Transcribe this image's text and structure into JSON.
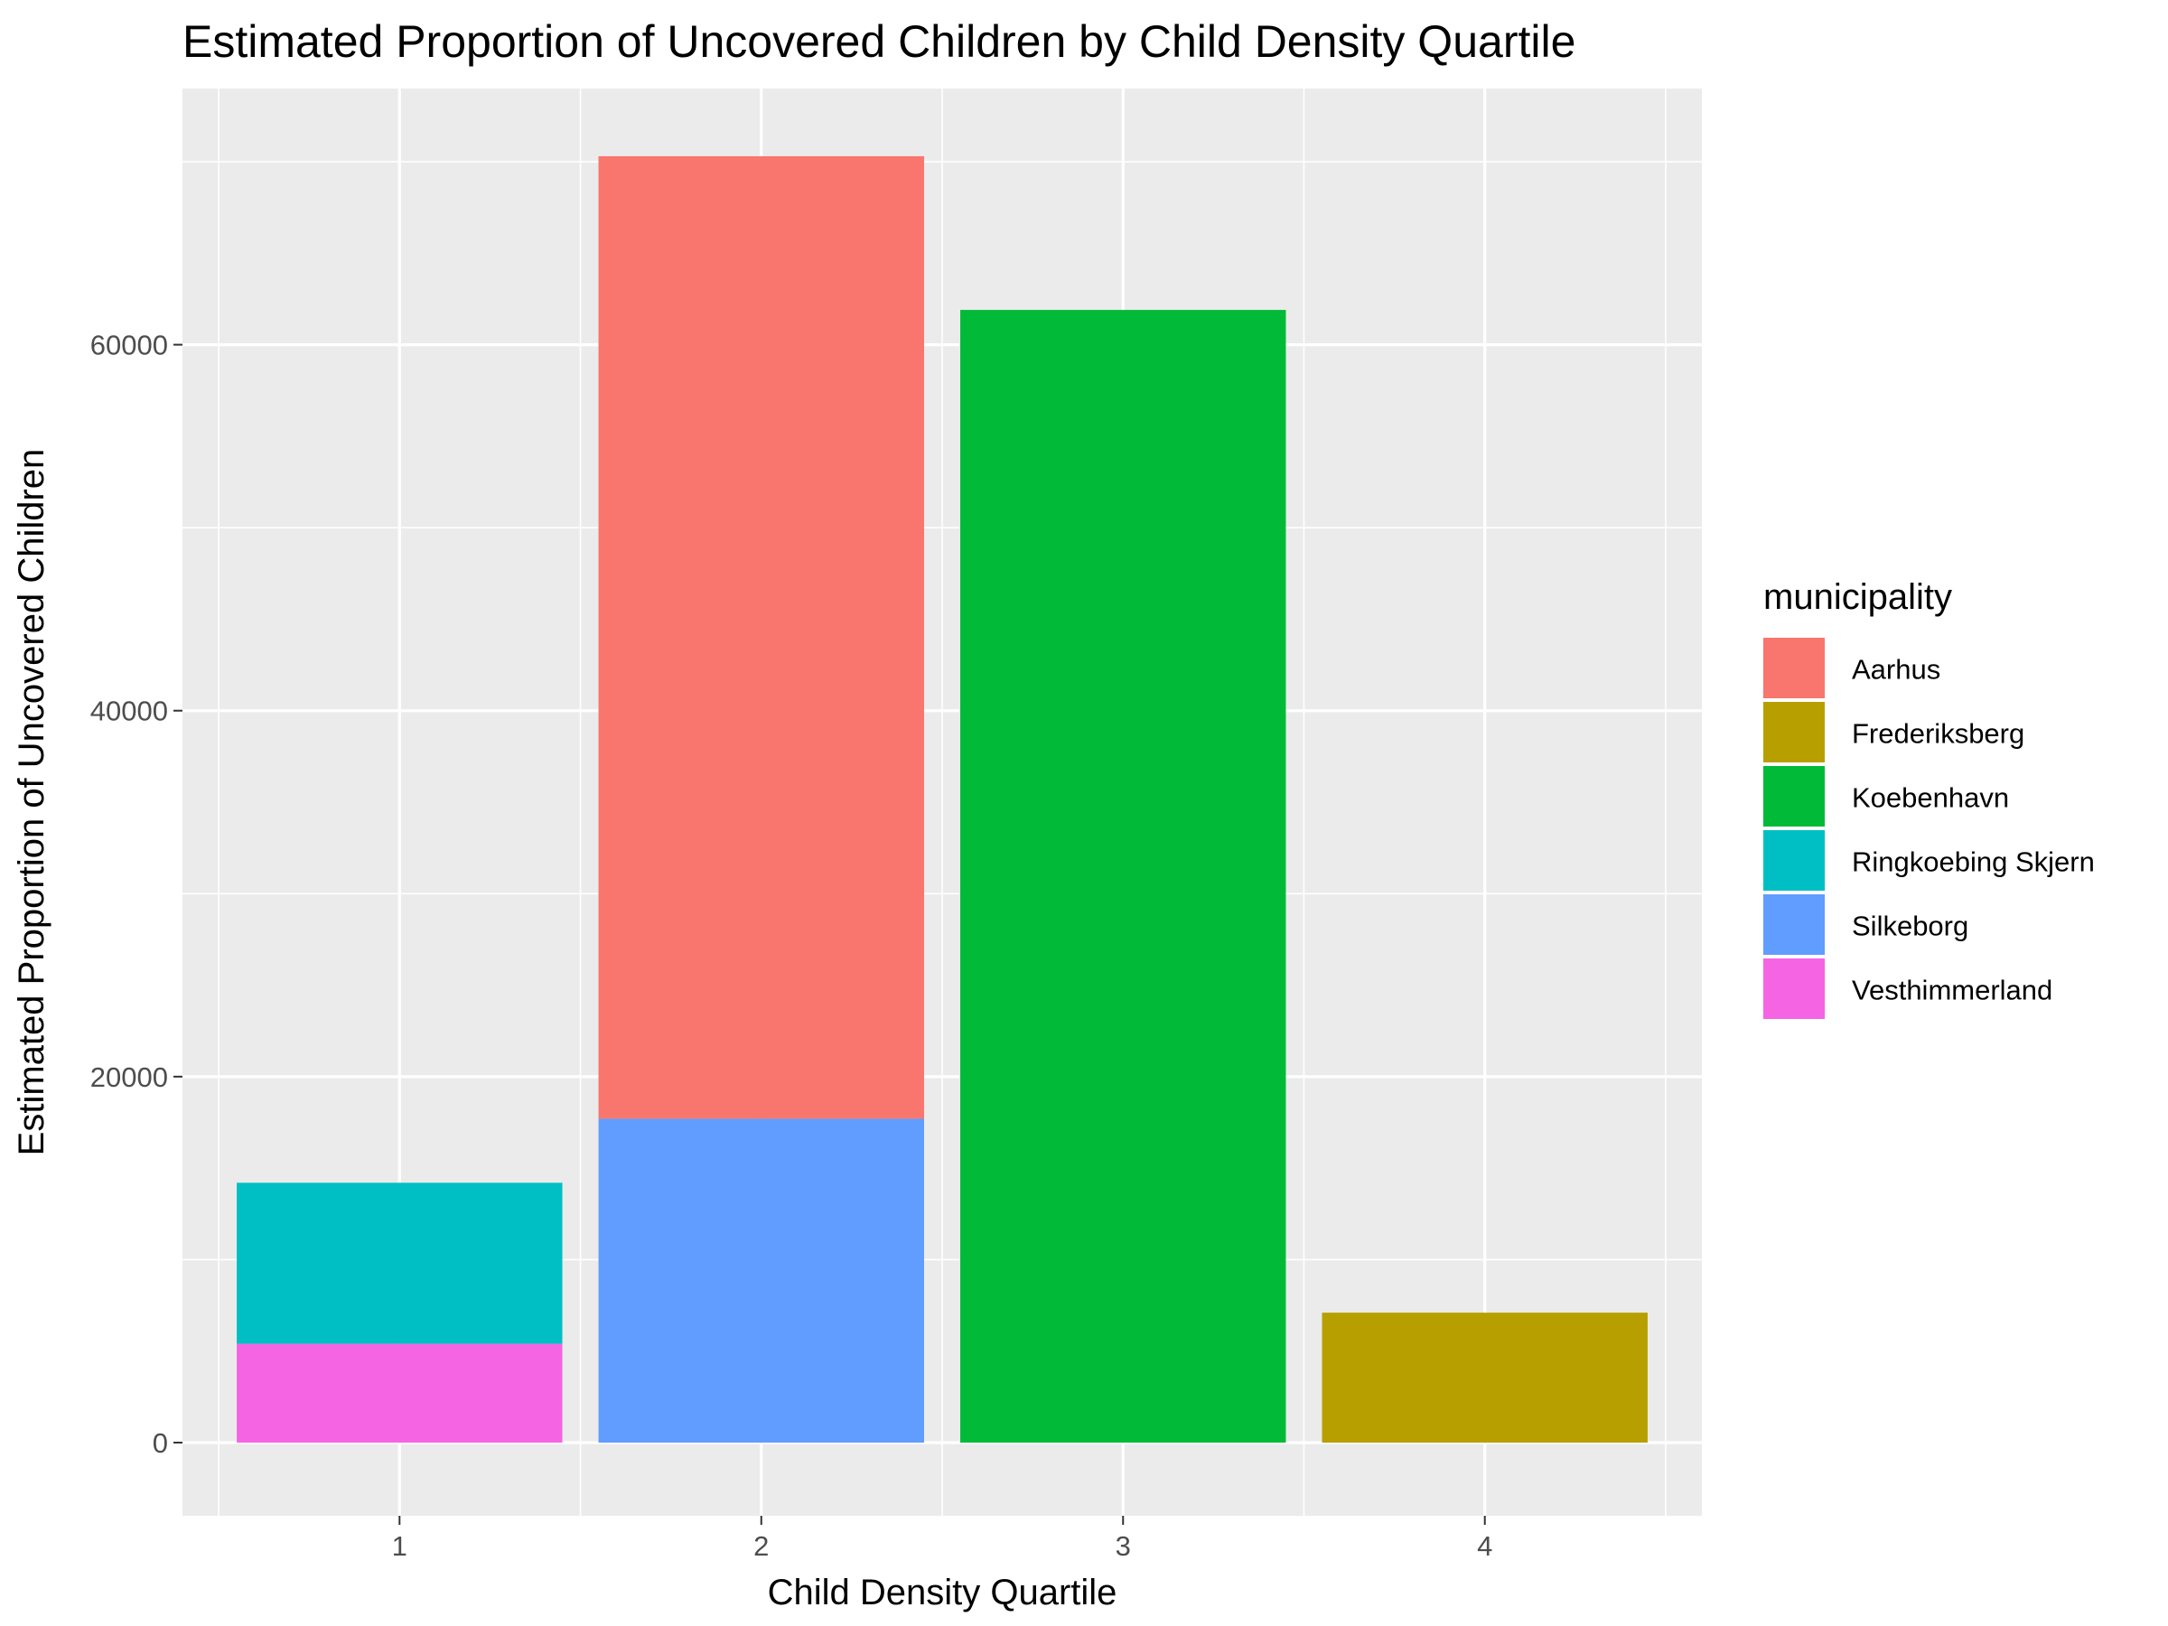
{
  "chart_data": {
    "type": "bar",
    "stacked": true,
    "title": "Estimated Proportion of Uncovered Children by Child Density Quartile",
    "xlabel": "Child Density Quartile",
    "ylabel": "Estimated Proportion of Uncovered Children",
    "categories": [
      "1",
      "2",
      "3",
      "4"
    ],
    "ylim": [
      -4000,
      74000
    ],
    "yticks": [
      0,
      20000,
      40000,
      60000
    ],
    "ytick_labels": [
      "0",
      "20000",
      "40000",
      "60000"
    ],
    "grid": true,
    "legend": {
      "title": "municipality",
      "position": "right",
      "entries": [
        "Aarhus",
        "Frederiksberg",
        "Koebenhavn",
        "Ringkoebing Skjern",
        "Silkeborg",
        "Vesthimmerland"
      ]
    },
    "colors": {
      "Aarhus": "#F8766D",
      "Frederiksberg": "#B79F00",
      "Koebenhavn": "#00BA38",
      "Ringkoebing Skjern": "#00BFC4",
      "Silkeborg": "#619CFF",
      "Vesthimmerland": "#F564E3"
    },
    "series": [
      {
        "name": "Aarhus",
        "values": [
          0,
          52600,
          0,
          0
        ]
      },
      {
        "name": "Frederiksberg",
        "values": [
          0,
          0,
          0,
          7100
        ]
      },
      {
        "name": "Koebenhavn",
        "values": [
          0,
          0,
          61900,
          0
        ]
      },
      {
        "name": "Ringkoebing Skjern",
        "values": [
          8800,
          0,
          0,
          0
        ]
      },
      {
        "name": "Silkeborg",
        "values": [
          0,
          17700,
          0,
          0
        ]
      },
      {
        "name": "Vesthimmerland",
        "values": [
          5400,
          0,
          0,
          0
        ]
      }
    ]
  }
}
